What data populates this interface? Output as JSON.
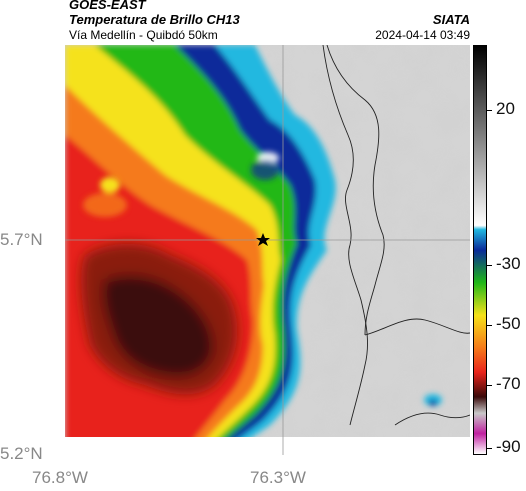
{
  "header": {
    "satellite": "GOES-EAST",
    "title": "Temperatura de Brillo CH13",
    "subtitle": "Vía Medellín - Quibdó 50km",
    "brand": "SIATA",
    "timestamp": "2024-04-14 03:49"
  },
  "axes": {
    "x_ticks": [
      "76.8°W",
      "76.3°W"
    ],
    "y_ticks": [
      "5.7°N",
      "5.2°N"
    ]
  },
  "colorbar": {
    "labels": [
      "20",
      "-30",
      "-50",
      "-70",
      "-90"
    ]
  },
  "marker": {
    "name": "star-marker"
  },
  "colors": {
    "cold_core": "#3a0a0a",
    "red": "#e8241c",
    "orange": "#f57a1a",
    "yellow": "#f5e21a",
    "green": "#20b818",
    "blue": "#0a2a9a",
    "cyan": "#21b8e0",
    "gray": "#c9c9c9"
  }
}
